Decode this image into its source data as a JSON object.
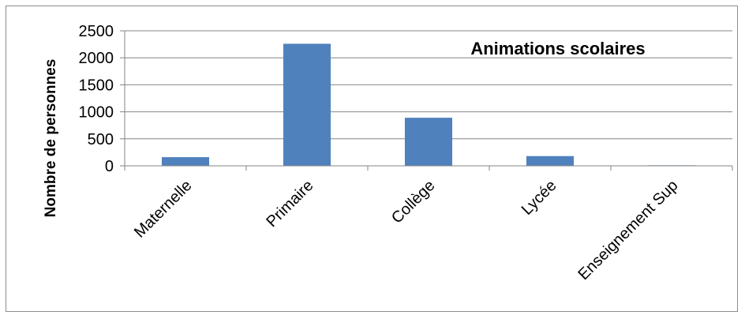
{
  "chart_data": {
    "type": "bar",
    "title": "Animations scolaires",
    "ylabel": "Nombre de personnes",
    "xlabel": "",
    "categories": [
      "Maternelle",
      "Primaire",
      "Collège",
      "Lycée",
      "Enseignement Sup"
    ],
    "values": [
      160,
      2260,
      890,
      180,
      10
    ],
    "ylim": [
      0,
      2500
    ],
    "yticks": [
      "0",
      "500",
      "1000",
      "1500",
      "2000",
      "2500"
    ],
    "grid": true,
    "legend": "none",
    "colors": {
      "bar": "#4f81bd",
      "grid": "#868686",
      "axis": "#868686",
      "frame": "#8c8c8c"
    }
  }
}
